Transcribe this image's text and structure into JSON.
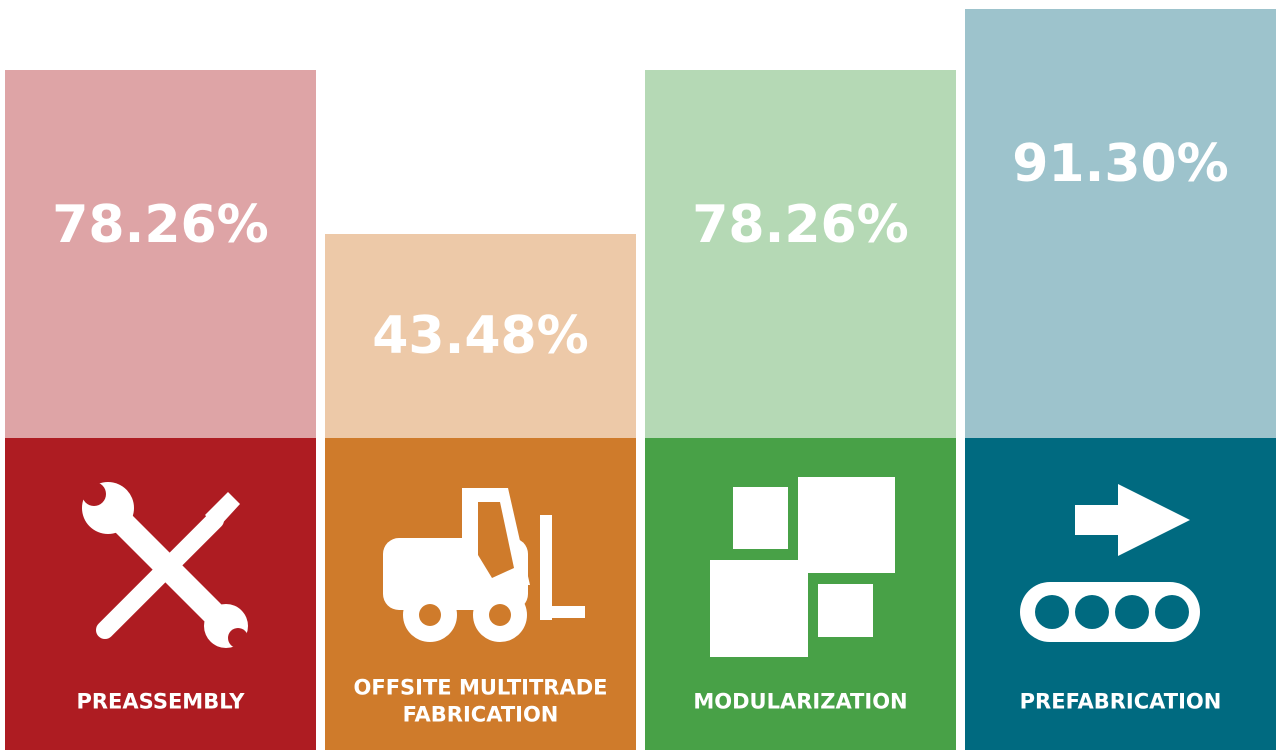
{
  "chart_data": {
    "type": "bar",
    "categories": [
      "PREASSEMBLY",
      "OFFSITE MULTITRADE FABRICATION",
      "MODULARIZATION",
      "PREFABRICATION"
    ],
    "values": [
      78.26,
      43.48,
      78.26,
      91.3
    ],
    "value_labels": [
      "78.26%",
      "43.48%",
      "78.26%",
      "91.30%"
    ],
    "colors": [
      "#dea4a6",
      "#edc9a8",
      "#b5d9b5",
      "#9dc3cc"
    ],
    "panel_colors": [
      "#ae1c22",
      "#cf7b2b",
      "#48a147",
      "#006a80"
    ]
  }
}
